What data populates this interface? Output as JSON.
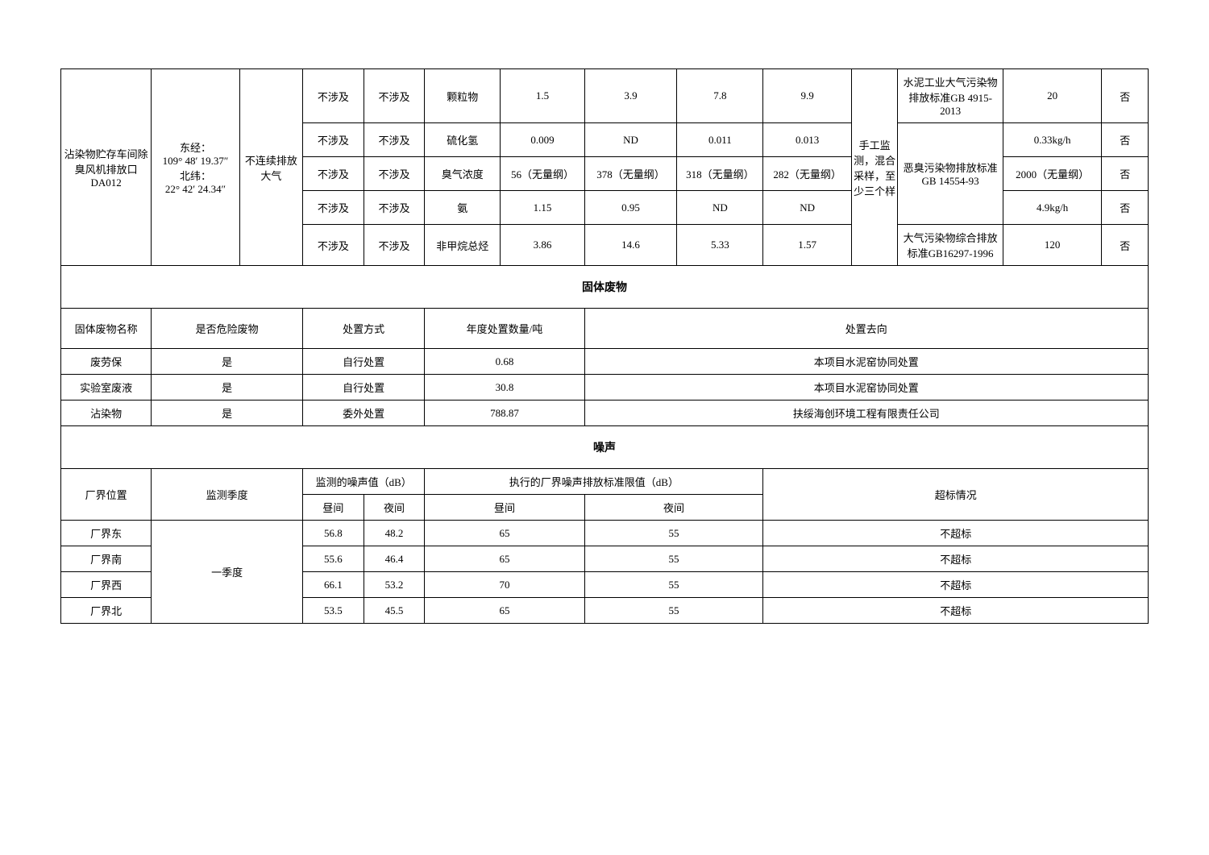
{
  "emissions": {
    "col1": "沾染物贮存车间除臭风机排放口DA012",
    "col2": "东经：\n109° 48′ 19.37″\n北纬：\n22° 42′ 24.34″",
    "col3": "不连续排放大气",
    "col_method": "手工监测，混合采样，至少三个样",
    "rows": [
      {
        "c4": "不涉及",
        "c5": "不涉及",
        "c6": "颗粒物",
        "c7": "1.5",
        "c8": "3.9",
        "c9": "7.8",
        "c10": "9.9",
        "c12": "水泥工业大气污染物排放标准GB 4915-2013",
        "c13": "20",
        "c14": "否"
      },
      {
        "c4": "不涉及",
        "c5": "不涉及",
        "c6": "硫化氢",
        "c7": "0.009",
        "c8": "ND",
        "c9": "0.011",
        "c10": "0.013",
        "c12": "",
        "c13": "0.33kg/h",
        "c14": "否"
      },
      {
        "c4": "不涉及",
        "c5": "不涉及",
        "c6": "臭气浓度",
        "c7": "56（无量纲）",
        "c8": "378（无量纲）",
        "c9": "318（无量纲）",
        "c10": "282（无量纲）",
        "c12": "恶臭污染物排放标准GB 14554-93",
        "c13": "2000（无量纲）",
        "c14": "否"
      },
      {
        "c4": "不涉及",
        "c5": "不涉及",
        "c6": "氨",
        "c7": "1.15",
        "c8": "0.95",
        "c9": "ND",
        "c10": "ND",
        "c12": "",
        "c13": "4.9kg/h",
        "c14": "否"
      },
      {
        "c4": "不涉及",
        "c5": "不涉及",
        "c6": "非甲烷总烃",
        "c7": "3.86",
        "c8": "14.6",
        "c9": "5.33",
        "c10": "1.57",
        "c12": "大气污染物综合排放标准GB16297-1996",
        "c13": "120",
        "c14": "否"
      }
    ]
  },
  "solid_waste": {
    "title": "固体废物",
    "headers": {
      "name": "固体废物名称",
      "hazard": "是否危险废物",
      "method": "处置方式",
      "qty": "年度处置数量/吨",
      "dest": "处置去向"
    },
    "rows": [
      {
        "name": "废劳保",
        "hazard": "是",
        "method": "自行处置",
        "qty": "0.68",
        "dest": "本项目水泥窑协同处置"
      },
      {
        "name": "实验室废液",
        "hazard": "是",
        "method": "自行处置",
        "qty": "30.8",
        "dest": "本项目水泥窑协同处置"
      },
      {
        "name": "沾染物",
        "hazard": "是",
        "method": "委外处置",
        "qty": "788.87",
        "dest": "扶绥海创环境工程有限责任公司"
      }
    ]
  },
  "noise": {
    "title": "噪声",
    "headers": {
      "loc": "厂界位置",
      "quarter": "监测季度",
      "measured": "监测的噪声值（dB）",
      "limit": "执行的厂界噪声排放标准限值（dB）",
      "exceed": "超标情况",
      "day": "昼间",
      "night": "夜间"
    },
    "quarter": "一季度",
    "rows": [
      {
        "loc": "厂界东",
        "d": "56.8",
        "n": "48.2",
        "ld": "65",
        "ln": "55",
        "ex": "不超标"
      },
      {
        "loc": "厂界南",
        "d": "55.6",
        "n": "46.4",
        "ld": "65",
        "ln": "55",
        "ex": "不超标"
      },
      {
        "loc": "厂界西",
        "d": "66.1",
        "n": "53.2",
        "ld": "70",
        "ln": "55",
        "ex": "不超标"
      },
      {
        "loc": "厂界北",
        "d": "53.5",
        "n": "45.5",
        "ld": "65",
        "ln": "55",
        "ex": "不超标"
      }
    ]
  }
}
